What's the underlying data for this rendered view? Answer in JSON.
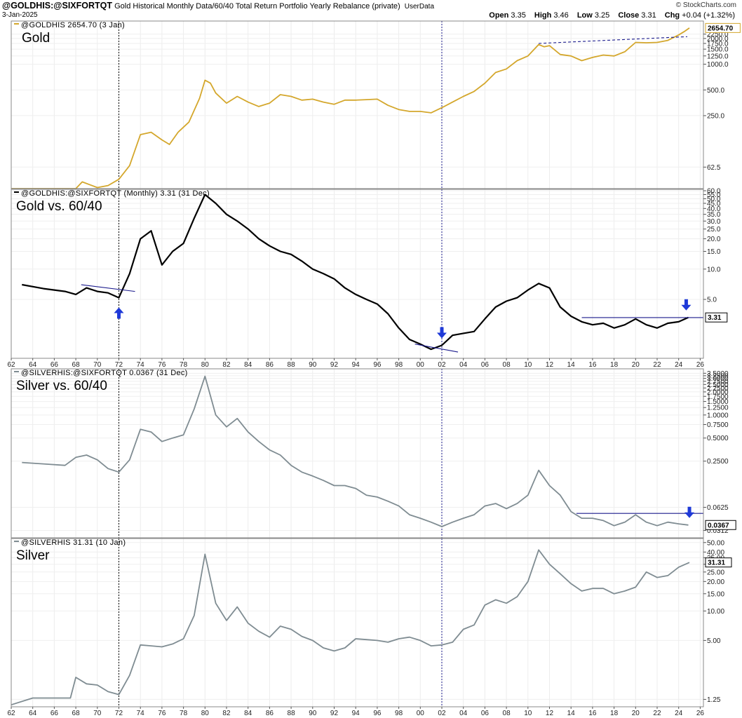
{
  "header": {
    "symbol": "@GOLDHIS:@SIXFORTQT",
    "description": "Gold Historical Monthly Data/60/40 Total Return Portfolio Yearly Rebalance (private)",
    "userdata": "UserData",
    "date": "3-Jan-2025",
    "brand": "© StockCharts.com",
    "open_label": "Open",
    "open": "3.35",
    "high_label": "High",
    "high": "3.46",
    "low_label": "Low",
    "low": "3.25",
    "close_label": "Close",
    "close": "3.31",
    "chg_label": "Chg",
    "chg": "+0.04 (+1.32%)"
  },
  "x_ticks": [
    "62",
    "64",
    "66",
    "68",
    "70",
    "72",
    "74",
    "76",
    "78",
    "80",
    "82",
    "84",
    "86",
    "88",
    "90",
    "92",
    "94",
    "96",
    "98",
    "00",
    "02",
    "04",
    "06",
    "08",
    "10",
    "12",
    "14",
    "16",
    "18",
    "20",
    "22",
    "24",
    "26"
  ],
  "colors": {
    "gold": "#d4a72c",
    "black": "#000000",
    "silver": "#7f8c92",
    "trend": "#1a1a8c",
    "arrow": "#1f3ad8"
  },
  "chart_data": [
    {
      "type": "line",
      "panel": "gold",
      "label": "Gold",
      "series_label": "@GOLDHIS 2654.70 (3 Jan)",
      "last_value": "2654.70",
      "y_scale": "log",
      "ylim": [
        35,
        3200
      ],
      "yticks": [
        62.5,
        250,
        500,
        1000,
        1250,
        1500,
        1750,
        2000,
        2250
      ],
      "ytick_labels": [
        "62.5",
        "250.0",
        "500.0",
        "1000.0",
        "1250.0",
        "1500.0",
        "1750.0",
        "2000.0",
        "2250.0"
      ],
      "x": [
        1962,
        1968,
        1968.6,
        1970,
        1971,
        1972,
        1973,
        1974,
        1975,
        1976,
        1976.7,
        1977.5,
        1978.5,
        1979.5,
        1980,
        1980.5,
        1981,
        1982,
        1983,
        1984,
        1985,
        1986,
        1987,
        1988,
        1989,
        1990,
        1991,
        1992,
        1993,
        1994,
        1995,
        1996,
        1997,
        1998,
        1999,
        2000,
        2001,
        2002,
        2003,
        2004,
        2005,
        2006,
        2007,
        2008,
        2009,
        2010,
        2011,
        2011.5,
        2012,
        2013,
        2014,
        2015,
        2016,
        2017,
        2018,
        2019,
        2020,
        2021,
        2022,
        2023,
        2024,
        2024.5,
        2025
      ],
      "values": [
        35,
        35,
        42,
        36,
        38,
        45,
        65,
        150,
        160,
        130,
        115,
        160,
        210,
        400,
        650,
        600,
        460,
        350,
        420,
        360,
        320,
        350,
        440,
        420,
        380,
        390,
        360,
        340,
        380,
        380,
        385,
        390,
        330,
        295,
        280,
        280,
        270,
        310,
        360,
        420,
        480,
        600,
        800,
        880,
        1100,
        1250,
        1700,
        1600,
        1650,
        1300,
        1250,
        1100,
        1200,
        1280,
        1250,
        1400,
        1800,
        1780,
        1800,
        1900,
        2200,
        2400,
        2654.7
      ],
      "trendline": {
        "x": [
          2011,
          2024.8
        ],
        "values": [
          1750,
          2100
        ]
      }
    },
    {
      "type": "line",
      "panel": "gold-vs-6040",
      "label": "Gold vs. 60/40",
      "series_label": "@GOLDHIS:@SIXFORTQT (Monthly) 3.31 (31 Dec)",
      "last_value": "3.31",
      "y_scale": "log",
      "ylim": [
        1.3,
        62
      ],
      "yticks": [
        5,
        10,
        15,
        20,
        25,
        30,
        35,
        40,
        45,
        50,
        55,
        60
      ],
      "ytick_labels": [
        "5.0",
        "10.0",
        "15.0",
        "20.0",
        "25.0",
        "30.0",
        "35.0",
        "40.0",
        "45.0",
        "50.0",
        "55.0",
        "60.0"
      ],
      "x": [
        1963,
        1965,
        1967,
        1968,
        1969,
        1970,
        1971,
        1972,
        1973,
        1974,
        1975,
        1976,
        1977,
        1978,
        1979,
        1980,
        1981,
        1982,
        1983,
        1984,
        1985,
        1986,
        1987,
        1988,
        1989,
        1990,
        1991,
        1992,
        1993,
        1994,
        1995,
        1996,
        1997,
        1998,
        1999,
        2000,
        2001,
        2002,
        2003,
        2004,
        2005,
        2006,
        2007,
        2008,
        2009,
        2010,
        2011,
        2012,
        2013,
        2014,
        2015,
        2016,
        2017,
        2018,
        2019,
        2020,
        2021,
        2022,
        2023,
        2024,
        2024.9
      ],
      "values": [
        7,
        6.4,
        6.0,
        5.6,
        6.5,
        6.0,
        5.8,
        5.2,
        9,
        20,
        24,
        11,
        15,
        18,
        32,
        55,
        45,
        35,
        30,
        25,
        20,
        17,
        15,
        14,
        12,
        10,
        9,
        8,
        6.5,
        5.6,
        5.0,
        4.5,
        3.6,
        2.6,
        2.0,
        1.8,
        1.6,
        1.75,
        2.2,
        2.3,
        2.4,
        3.2,
        4.2,
        4.8,
        5.2,
        6.2,
        7.2,
        6.5,
        4.2,
        3.4,
        3.0,
        2.8,
        2.9,
        2.6,
        2.8,
        3.2,
        2.8,
        2.6,
        2.9,
        3.0,
        3.31
      ],
      "trendlines": [
        {
          "x": [
            1968.5,
            1973.5
          ],
          "values": [
            7.0,
            6.0
          ]
        },
        {
          "x": [
            1999.5,
            2003.5
          ],
          "values": [
            1.8,
            1.5
          ]
        },
        {
          "x": [
            2015,
            2026
          ],
          "values": [
            3.3,
            3.3
          ]
        }
      ],
      "arrows": [
        {
          "x": 1972,
          "direction": "up"
        },
        {
          "x": 2002,
          "direction": "down"
        },
        {
          "x": 2024.7,
          "direction": "down"
        }
      ]
    },
    {
      "type": "line",
      "panel": "silver-vs-6040",
      "label": "Silver vs. 60/40",
      "series_label": "@SILVERHIS:@SIXFORTQT 0.0367 (31 Dec)",
      "last_value": "0.0367",
      "y_scale": "log",
      "ylim": [
        0.025,
        4.0
      ],
      "yticks": [
        0.0312,
        0.0625,
        0.25,
        0.5,
        0.75,
        1.0,
        1.25,
        1.5,
        1.75,
        2.0,
        2.25,
        2.5,
        2.75,
        3.0,
        3.25,
        3.5
      ],
      "ytick_labels": [
        "0.0312",
        "0.0625",
        "0.2500",
        "0.5000",
        "0.7500",
        "1.0000",
        "1.2500",
        "1.5000",
        "1.7500",
        "2.0000",
        "2.2500",
        "2.5000",
        "2.7500",
        "3.0000",
        "3.2500",
        "3.5000"
      ],
      "x": [
        1963,
        1965,
        1967,
        1968,
        1969,
        1970,
        1971,
        1972,
        1973,
        1974,
        1975,
        1976,
        1977,
        1978,
        1979,
        1980,
        1981,
        1982,
        1983,
        1984,
        1985,
        1986,
        1987,
        1988,
        1989,
        1990,
        1991,
        1992,
        1993,
        1994,
        1995,
        1996,
        1997,
        1998,
        1999,
        2000,
        2001,
        2002,
        2003,
        2004,
        2005,
        2006,
        2007,
        2008,
        2009,
        2010,
        2011,
        2012,
        2013,
        2014,
        2015,
        2016,
        2017,
        2018,
        2019,
        2020,
        2021,
        2022,
        2023,
        2024,
        2024.9
      ],
      "values": [
        0.24,
        0.23,
        0.22,
        0.28,
        0.3,
        0.26,
        0.2,
        0.18,
        0.26,
        0.65,
        0.6,
        0.45,
        0.5,
        0.55,
        1.2,
        3.2,
        1.0,
        0.7,
        0.9,
        0.6,
        0.45,
        0.35,
        0.3,
        0.22,
        0.18,
        0.16,
        0.14,
        0.12,
        0.12,
        0.11,
        0.09,
        0.085,
        0.075,
        0.065,
        0.05,
        0.045,
        0.04,
        0.035,
        0.04,
        0.045,
        0.05,
        0.065,
        0.07,
        0.06,
        0.07,
        0.09,
        0.19,
        0.12,
        0.09,
        0.055,
        0.045,
        0.045,
        0.042,
        0.036,
        0.04,
        0.05,
        0.04,
        0.036,
        0.04,
        0.038,
        0.0367
      ],
      "trendlines": [
        {
          "x": [
            2014.5,
            2026
          ],
          "values": [
            0.052,
            0.052
          ]
        }
      ],
      "arrows": [
        {
          "x": 2025,
          "direction": "down"
        }
      ]
    },
    {
      "type": "line",
      "panel": "silver",
      "label": "Silver",
      "series_label": "@SILVERHIS 31.31 (10 Jan)",
      "last_value": "31.31",
      "y_scale": "log",
      "ylim": [
        1.05,
        55
      ],
      "yticks": [
        1.25,
        5,
        10,
        15,
        20,
        25,
        30,
        35,
        40,
        50
      ],
      "ytick_labels": [
        "1.25",
        "5.00",
        "10.00",
        "15.00",
        "20.00",
        "25.00",
        "30.00",
        "35.00",
        "40.00",
        "50.00"
      ],
      "x": [
        1962,
        1964,
        1966,
        1967.5,
        1968,
        1969,
        1970,
        1971,
        1972,
        1973,
        1974,
        1975,
        1976,
        1977,
        1978,
        1979,
        1980,
        1981,
        1982,
        1983,
        1984,
        1985,
        1986,
        1987,
        1988,
        1989,
        1990,
        1991,
        1992,
        1993,
        1994,
        1995,
        1996,
        1997,
        1998,
        1999,
        2000,
        2001,
        2002,
        2003,
        2004,
        2005,
        2006,
        2007,
        2008,
        2009,
        2010,
        2011,
        2012,
        2013,
        2014,
        2015,
        2016,
        2017,
        2018,
        2019,
        2020,
        2021,
        2022,
        2023,
        2024,
        2025
      ],
      "values": [
        1.1,
        1.29,
        1.29,
        1.29,
        2.1,
        1.8,
        1.75,
        1.5,
        1.4,
        2.2,
        4.5,
        4.4,
        4.3,
        4.6,
        5.2,
        9,
        38,
        12,
        8,
        11,
        7.5,
        6.2,
        5.4,
        7,
        6.5,
        5.5,
        5,
        4.2,
        3.9,
        4.2,
        5.2,
        5.1,
        5.0,
        4.8,
        5.2,
        5.4,
        5.0,
        4.4,
        4.5,
        4.8,
        6.5,
        7.2,
        11.5,
        13,
        12,
        14,
        20,
        42,
        30,
        24,
        19,
        16,
        17,
        17,
        15,
        16,
        17.5,
        25,
        22,
        23,
        28,
        31.31
      ]
    }
  ]
}
